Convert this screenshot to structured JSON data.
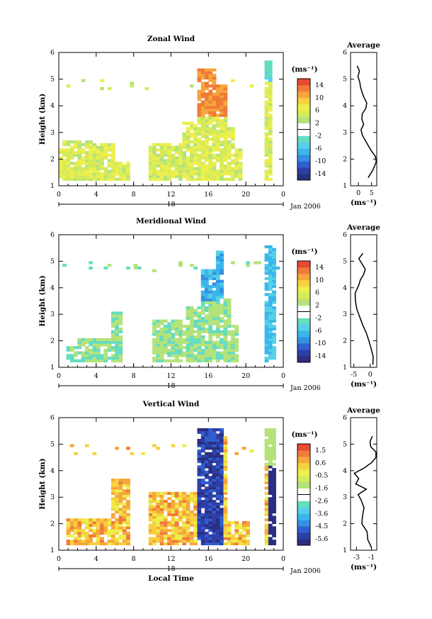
{
  "chart_data": [
    {
      "type": "heatmap",
      "title": "Zonal Wind",
      "xlabel": "",
      "ylabel": "Height (km)",
      "xlim": [
        0,
        24
      ],
      "ylim": [
        1,
        6
      ],
      "x_ticks": [
        "0",
        "4",
        "8",
        "12",
        "16",
        "20",
        "0"
      ],
      "y_ticks": [
        "1",
        "2",
        "3",
        "4",
        "5",
        "6"
      ],
      "date_axis": {
        "label": "18",
        "suffix": "Jan 2006"
      },
      "colorbar": {
        "unit": "(ms⁻¹)",
        "ticks": [
          "14",
          "10",
          "6",
          "2",
          "-2",
          "-6",
          "-10",
          "-14"
        ],
        "min": -16,
        "max": 16
      },
      "average_profile": {
        "title": "Average",
        "xlabel": "(ms⁻¹)",
        "xlim": [
          -3,
          7
        ],
        "x_ticks": [
          "0",
          "5"
        ],
        "y_ticks": [
          "1",
          "2",
          "3",
          "4",
          "5",
          "6"
        ],
        "height": [
          1.3,
          1.6,
          1.9,
          2.1,
          2.3,
          2.6,
          2.9,
          3.1,
          3.3,
          3.5,
          3.7,
          3.9,
          4.1,
          4.3,
          4.5,
          4.7,
          4.9,
          5.1,
          5.3,
          5.5
        ],
        "value": [
          3.7,
          5.6,
          6.8,
          6.5,
          5.0,
          3.2,
          1.5,
          1.0,
          2.0,
          1.3,
          1.5,
          2.8,
          3.2,
          2.2,
          1.4,
          0.8,
          0.5,
          -0.2,
          0.4,
          -0.5
        ]
      }
    },
    {
      "type": "heatmap",
      "title": "Meridional Wind",
      "xlabel": "",
      "ylabel": "Height (km)",
      "xlim": [
        0,
        24
      ],
      "ylim": [
        1,
        6
      ],
      "x_ticks": [
        "0",
        "4",
        "8",
        "12",
        "16",
        "20",
        "0"
      ],
      "y_ticks": [
        "1",
        "2",
        "3",
        "4",
        "5",
        "6"
      ],
      "date_axis": {
        "label": "18",
        "suffix": "Jan 2006"
      },
      "colorbar": {
        "unit": "(ms⁻¹)",
        "ticks": [
          "14",
          "10",
          "6",
          "2",
          "-2",
          "-6",
          "-10",
          "-14"
        ],
        "min": -16,
        "max": 16
      },
      "average_profile": {
        "title": "Average",
        "xlabel": "(ms⁻¹)",
        "xlim": [
          -6,
          2
        ],
        "x_ticks": [
          "-5",
          "0"
        ],
        "y_ticks": [
          "1",
          "2",
          "3",
          "4",
          "5",
          "6"
        ],
        "height": [
          1.1,
          1.4,
          1.7,
          2.0,
          2.3,
          2.6,
          2.9,
          3.2,
          3.5,
          3.8,
          4.1,
          4.3,
          4.5,
          4.7,
          4.9,
          5.1,
          5.3
        ],
        "value": [
          0.8,
          0.9,
          0.3,
          -0.4,
          -1.2,
          -2.3,
          -3.2,
          -4.1,
          -4.5,
          -4.6,
          -3.5,
          -3.0,
          -2.0,
          -1.5,
          -2.5,
          -3.5,
          -2.2
        ]
      }
    },
    {
      "type": "heatmap",
      "title": "Vertical Wind",
      "xlabel": "Local Time",
      "ylabel": "Height (km)",
      "xlim": [
        0,
        24
      ],
      "ylim": [
        1,
        6
      ],
      "x_ticks": [
        "0",
        "4",
        "8",
        "12",
        "16",
        "20",
        "0"
      ],
      "y_ticks": [
        "1",
        "2",
        "3",
        "4",
        "5",
        "6"
      ],
      "date_axis": {
        "label": "18",
        "suffix": "Jan 2006"
      },
      "colorbar": {
        "unit": "(ms⁻¹)",
        "ticks": [
          "1.5",
          "0.6",
          "-0.5",
          "-1.6",
          "-2.6",
          "-3.6",
          "-4.5",
          "-5.6"
        ],
        "min": -6.1,
        "max": 2.0
      },
      "average_profile": {
        "title": "Average",
        "xlabel": "(ms⁻¹)",
        "xlim": [
          -3.8,
          -0.3
        ],
        "x_ticks": [
          "-3",
          "-1"
        ],
        "y_ticks": [
          "1",
          "2",
          "3",
          "4",
          "5",
          "6"
        ],
        "height": [
          1.1,
          1.4,
          1.7,
          2.0,
          2.3,
          2.6,
          2.9,
          3.1,
          3.3,
          3.5,
          3.7,
          3.9,
          4.1,
          4.3,
          4.5,
          4.7,
          4.9,
          5.1,
          5.3
        ],
        "value": [
          -1.0,
          -1.5,
          -1.6,
          -2.3,
          -2.2,
          -2.0,
          -2.4,
          -2.8,
          -1.7,
          -3.1,
          -2.7,
          -3.3,
          -2.0,
          -1.0,
          -0.4,
          -0.4,
          -1.1,
          -1.2,
          -0.9
        ]
      }
    }
  ]
}
